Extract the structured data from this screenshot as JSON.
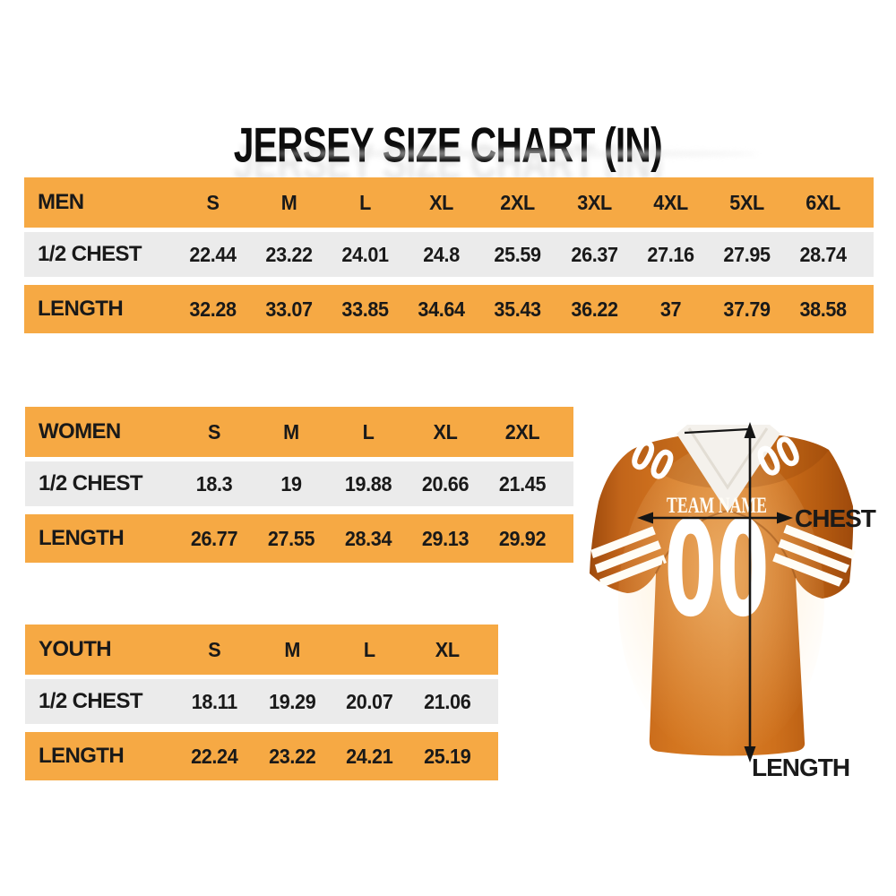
{
  "title": "JERSEY SIZE CHART (IN)",
  "tables": [
    {
      "name": "MEN",
      "sizes": [
        "S",
        "M",
        "L",
        "XL",
        "2XL",
        "3XL",
        "4XL",
        "5XL",
        "6XL"
      ],
      "rows": [
        {
          "label": "1/2 CHEST",
          "values": [
            "22.44",
            "23.22",
            "24.01",
            "24.8",
            "25.59",
            "26.37",
            "27.16",
            "27.95",
            "28.74"
          ]
        },
        {
          "label": "LENGTH",
          "values": [
            "32.28",
            "33.07",
            "33.85",
            "34.64",
            "35.43",
            "36.22",
            "37",
            "37.79",
            "38.58"
          ]
        }
      ]
    },
    {
      "name": "WOMEN",
      "sizes": [
        "S",
        "M",
        "L",
        "XL",
        "2XL"
      ],
      "rows": [
        {
          "label": "1/2 CHEST",
          "values": [
            "18.3",
            "19",
            "19.88",
            "20.66",
            "21.45"
          ]
        },
        {
          "label": "LENGTH",
          "values": [
            "26.77",
            "27.55",
            "28.34",
            "29.13",
            "29.92"
          ]
        }
      ]
    },
    {
      "name": "YOUTH",
      "sizes": [
        "S",
        "M",
        "L",
        "XL"
      ],
      "rows": [
        {
          "label": "1/2 CHEST",
          "values": [
            "18.11",
            "19.29",
            "20.07",
            "21.06"
          ]
        },
        {
          "label": "LENGTH",
          "values": [
            "22.24",
            "23.22",
            "24.21",
            "25.19"
          ]
        }
      ]
    }
  ],
  "jersey": {
    "team_name": "TEAM NAME",
    "front_number": "00",
    "shoulder_number": "00",
    "chest_label": "CHEST",
    "length_label": "LENGTH"
  },
  "colors": {
    "header_row_bg": "#F6A944",
    "alt_row_bg": "#EBEBEB",
    "table_text": "#191919",
    "jersey_orange": "#C96A1E",
    "jersey_detail_white": "#FFFFFF",
    "annotation_black": "#151515"
  }
}
